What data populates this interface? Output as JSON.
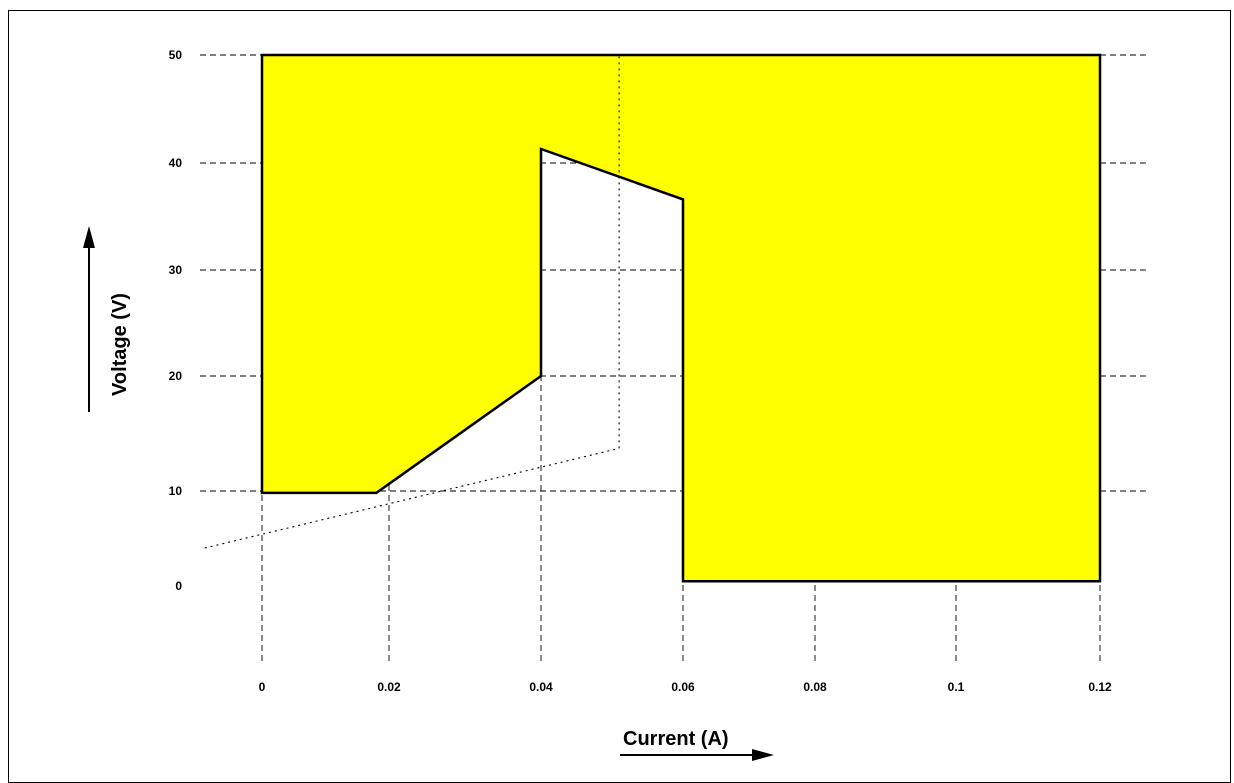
{
  "chart_data": {
    "type": "area",
    "xlabel": "Current (A)",
    "ylabel": "Voltage (V)",
    "x_ticks": [
      {
        "value": 0,
        "label": "0"
      },
      {
        "value": 0.02,
        "label": "0.02"
      },
      {
        "value": 0.04,
        "label": "0.04"
      },
      {
        "value": 0.06,
        "label": "0.06"
      },
      {
        "value": 0.08,
        "label": "0.08"
      },
      {
        "value": 0.1,
        "label": "0.1"
      },
      {
        "value": 0.12,
        "label": "0.12"
      }
    ],
    "y_ticks": [
      {
        "value": 0,
        "label": "0"
      },
      {
        "value": 10,
        "label": "10"
      },
      {
        "value": 20,
        "label": "20"
      },
      {
        "value": 30,
        "label": "30"
      },
      {
        "value": 40,
        "label": "40"
      },
      {
        "value": 50,
        "label": "50"
      }
    ],
    "grid": true,
    "fill_color": "#ffff00",
    "line_color": "#000000",
    "regions": [
      {
        "points": [
          [
            0,
            50
          ],
          [
            0,
            9.8
          ],
          [
            0.018,
            9.8
          ],
          [
            0.04,
            20
          ],
          [
            0.04,
            41.3
          ],
          [
            0.06,
            36.6
          ],
          [
            0.06,
            0.5
          ],
          [
            0.12,
            0.5
          ],
          [
            0.12,
            50
          ]
        ]
      }
    ],
    "reference_lines": [
      {
        "style": "dotted",
        "points": [
          [
            -0.009,
            4
          ],
          [
            0.051,
            13.7
          ]
        ]
      },
      {
        "style": "dotted",
        "points": [
          [
            0.051,
            13.7
          ],
          [
            0.051,
            50
          ]
        ]
      }
    ]
  }
}
